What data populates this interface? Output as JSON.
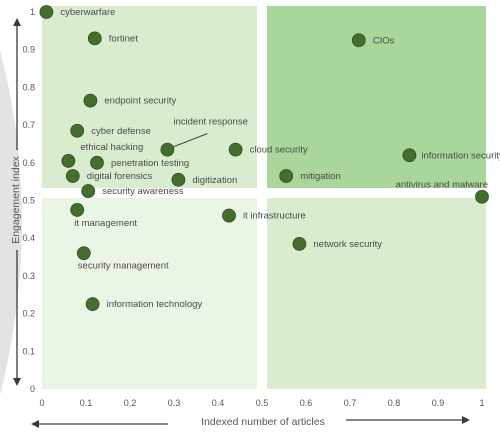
{
  "chart_data": {
    "type": "scatter",
    "title": "",
    "xlabel": "Indexed number of articles",
    "ylabel": "Engagement index",
    "xlim": [
      0,
      1
    ],
    "ylim": [
      0,
      1
    ],
    "xticks": [
      "0",
      "0.1",
      "0.2",
      "0.3",
      "0.4",
      "0.5",
      "0.6",
      "0.7",
      "0.8",
      "0.9",
      "1"
    ],
    "yticks": [
      "0",
      "0.1",
      "0.2",
      "0.3",
      "0.4",
      "0.5",
      "0.6",
      "0.7",
      "0.8",
      "0.9",
      "1"
    ],
    "grid": false,
    "quadrant_split": {
      "x": 0.5,
      "y": 0.52
    },
    "colors": {
      "point": "#436e2c",
      "point_edge": "#2f5120",
      "quadrant_top_left": "#d9ecd0",
      "quadrant_top_right": "#a9d69a",
      "quadrant_bottom_left": "#ebf5e6",
      "quadrant_bottom_right": "#d9ecd0",
      "axis_arrow": "#3a3a3a",
      "background_arc": "#e3e3e3"
    },
    "points": [
      {
        "label": "cyberwarfare",
        "x": 0.01,
        "y": 1.0
      },
      {
        "label": "fortinet",
        "x": 0.12,
        "y": 0.93
      },
      {
        "label": "CIOs",
        "x": 0.72,
        "y": 0.925
      },
      {
        "label": "endpoint security",
        "x": 0.11,
        "y": 0.765
      },
      {
        "label": "cyber defense",
        "x": 0.08,
        "y": 0.685
      },
      {
        "label": "incident response",
        "x": 0.285,
        "y": 0.635
      },
      {
        "label": "cloud security",
        "x": 0.44,
        "y": 0.635
      },
      {
        "label": "information security",
        "x": 0.835,
        "y": 0.62
      },
      {
        "label": "ethical hacking",
        "x": 0.06,
        "y": 0.605
      },
      {
        "label": "penetration testing",
        "x": 0.125,
        "y": 0.6
      },
      {
        "label": "digital forensics",
        "x": 0.07,
        "y": 0.565
      },
      {
        "label": "mitigation",
        "x": 0.555,
        "y": 0.565
      },
      {
        "label": "digitization",
        "x": 0.31,
        "y": 0.555
      },
      {
        "label": "security awareness",
        "x": 0.105,
        "y": 0.525
      },
      {
        "label": "antivirus and malware",
        "x": 1.0,
        "y": 0.51
      },
      {
        "label": "it management",
        "x": 0.08,
        "y": 0.475
      },
      {
        "label": "it infrastructure",
        "x": 0.425,
        "y": 0.46
      },
      {
        "label": "network security",
        "x": 0.585,
        "y": 0.385
      },
      {
        "label": "security management",
        "x": 0.095,
        "y": 0.36
      },
      {
        "label": "information technology",
        "x": 0.115,
        "y": 0.225
      }
    ]
  }
}
